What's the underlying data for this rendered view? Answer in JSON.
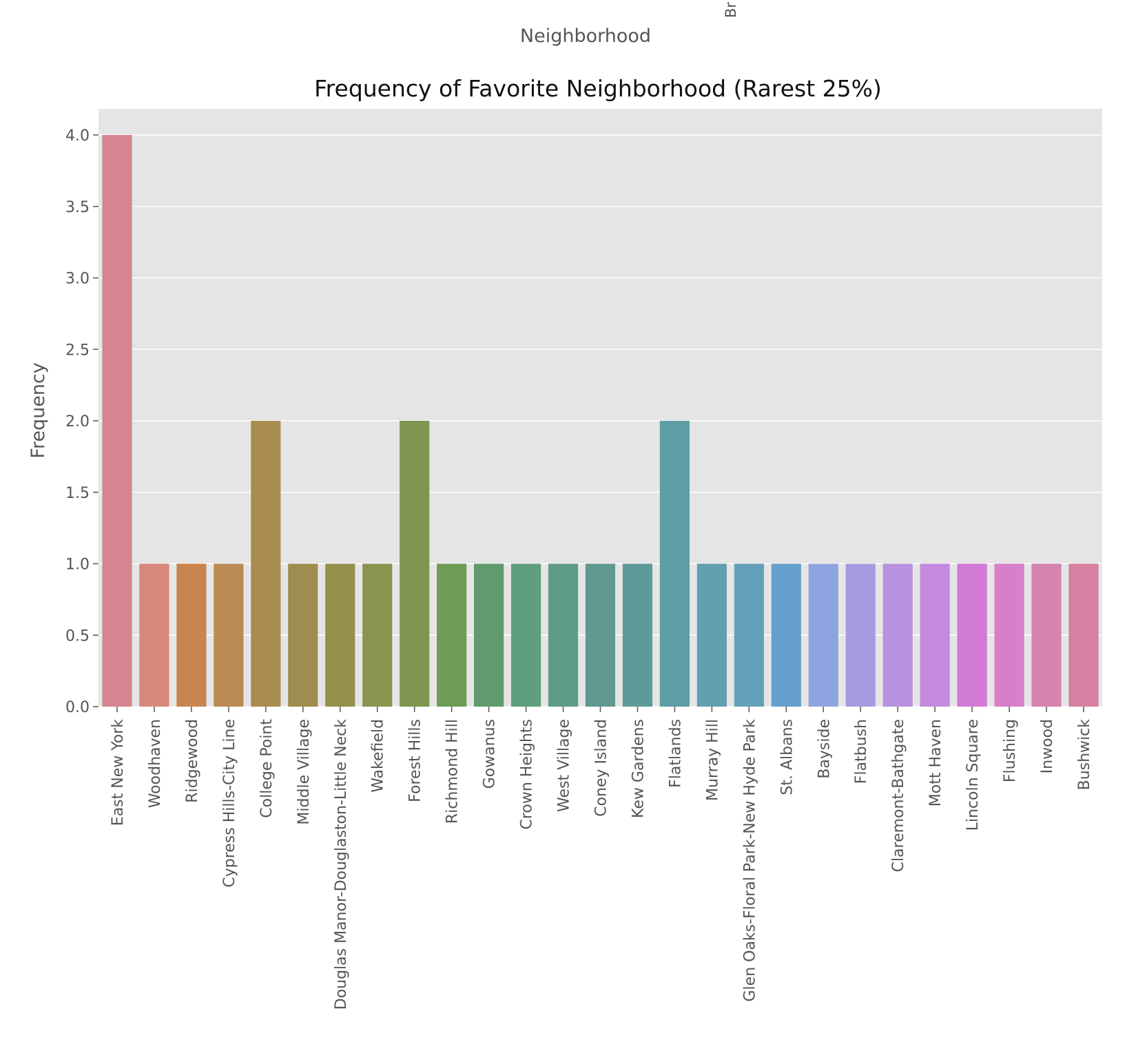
{
  "top_fragment": {
    "xlabel": "Neighborhood",
    "tick_text": "Br"
  },
  "chart_data": {
    "type": "bar",
    "title": "Frequency of Favorite Neighborhood (Rarest 25%)",
    "xlabel": "",
    "ylabel": "Frequency",
    "ylim": [
      0,
      4.2
    ],
    "yticks": [
      "0.0",
      "0.5",
      "1.0",
      "1.5",
      "2.0",
      "2.5",
      "3.0",
      "3.5",
      "4.0"
    ],
    "grid": true,
    "categories": [
      "East New York",
      "Woodhaven",
      "Ridgewood",
      "Cypress Hills-City Line",
      "College Point",
      "Middle Village",
      "Douglas Manor-Douglaston-Little Neck",
      "Wakefield",
      "Forest Hills",
      "Richmond Hill",
      "Gowanus",
      "Crown Heights",
      "West Village",
      "Coney Island",
      "Kew Gardens",
      "Flatlands",
      "Murray Hill",
      "Glen Oaks-Floral Park-New Hyde Park",
      "St. Albans",
      "Bayside",
      "Flatbush",
      "Claremont-Bathgate",
      "Mott Haven",
      "Lincoln Square",
      "Flushing",
      "Inwood",
      "Bushwick"
    ],
    "values": [
      4,
      1,
      1,
      1,
      2,
      1,
      1,
      1,
      2,
      1,
      1,
      1,
      1,
      1,
      1,
      2,
      1,
      1,
      1,
      1,
      1,
      1,
      1,
      1,
      1,
      1,
      1
    ],
    "colors": [
      "#d6848f",
      "#d7887a",
      "#c9854f",
      "#b98a54",
      "#a98c4f",
      "#9e8d4e",
      "#958f4c",
      "#8b944f",
      "#7e964f",
      "#6e9c54",
      "#5f9b6c",
      "#5e9e7f",
      "#5e9b88",
      "#5f9990",
      "#5e9a99",
      "#5f9da5",
      "#629faf",
      "#64a0b8",
      "#66a0cc",
      "#8ea4e0",
      "#a89ae0",
      "#b692e0",
      "#c38ae0",
      "#d17ad6",
      "#d77fc9",
      "#d783b0",
      "#d681a2"
    ],
    "plot_background": "#e5e5e5",
    "grid_color": "#ffffff"
  }
}
